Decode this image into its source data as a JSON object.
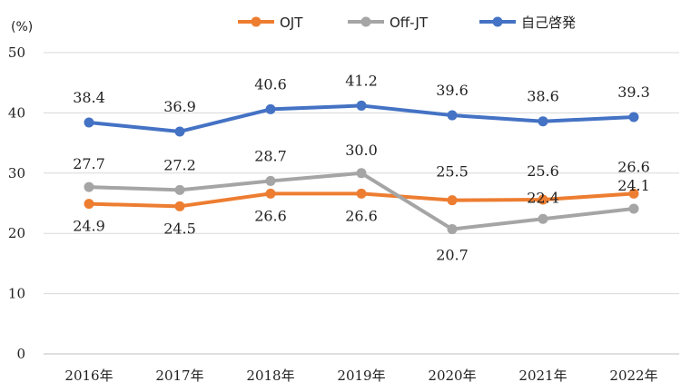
{
  "chart_data": {
    "type": "line",
    "unit_label": "(%)",
    "categories": [
      "2016年",
      "2017年",
      "2018年",
      "2019年",
      "2020年",
      "2021年",
      "2022年"
    ],
    "ylim": [
      0,
      50
    ],
    "yticks": [
      0,
      10,
      20,
      30,
      40,
      50
    ],
    "grid": true,
    "legend_position": "top",
    "series": [
      {
        "name": "OJT",
        "color": "#ED7D31",
        "values": [
          24.9,
          24.5,
          26.6,
          26.6,
          25.5,
          25.6,
          26.6
        ],
        "labels": [
          "24.9",
          "24.5",
          "26.6",
          "26.6",
          "25.5",
          "25.6",
          "26.6"
        ]
      },
      {
        "name": "Off-JT",
        "color": "#A5A5A5",
        "values": [
          27.7,
          27.2,
          28.7,
          30.0,
          20.7,
          22.4,
          24.1
        ],
        "labels": [
          "27.7",
          "27.2",
          "28.7",
          "30.0",
          "20.7",
          "22.4",
          "24.1"
        ]
      },
      {
        "name": "自己啓発",
        "color": "#4472C4",
        "values": [
          38.4,
          36.9,
          40.6,
          41.2,
          39.6,
          38.6,
          39.3
        ],
        "labels": [
          "38.4",
          "36.9",
          "40.6",
          "41.2",
          "39.6",
          "38.6",
          "39.3"
        ]
      }
    ]
  }
}
